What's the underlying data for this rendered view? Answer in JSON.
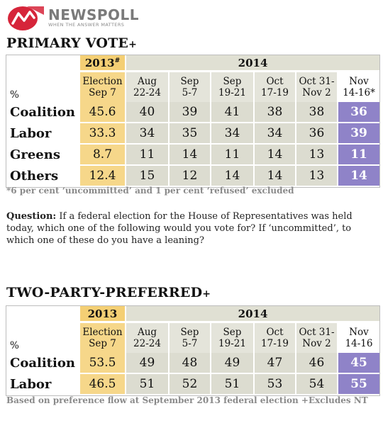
{
  "brand": {
    "name": "NEWSPOLL",
    "tagline": "WHEN THE ANSWER MATTERS",
    "logo_icon": "newspoll-logo-icon",
    "colors": {
      "logo_red": "#d6253a",
      "logo_grey": "#7a7a7a"
    }
  },
  "colors": {
    "col2013": "#f6d78a",
    "col2014": "#dcdcd0",
    "highlight_nov": "#8f83c8",
    "note_grey": "#8a8a8a"
  },
  "primary": {
    "title": "PRIMARY VOTE",
    "title_mark": "+",
    "year2013": "2013",
    "year2013_mark": "#",
    "year2014": "2014",
    "pct_label": "%",
    "columns": [
      {
        "l1": "Election",
        "l2": "Sep 7"
      },
      {
        "l1": "Aug",
        "l2": "22-24"
      },
      {
        "l1": "Sep",
        "l2": "5-7"
      },
      {
        "l1": "Sep",
        "l2": "19-21"
      },
      {
        "l1": "Oct",
        "l2": "17-19"
      },
      {
        "l1": "Oct 31-",
        "l2": "Nov 2"
      },
      {
        "l1": "Nov",
        "l2": "14-16*"
      }
    ],
    "rows": [
      {
        "label": "Coalition",
        "values": [
          "45.6",
          "40",
          "39",
          "41",
          "38",
          "38",
          "36"
        ]
      },
      {
        "label": "Labor",
        "values": [
          "33.3",
          "34",
          "35",
          "34",
          "34",
          "36",
          "39"
        ]
      },
      {
        "label": "Greens",
        "values": [
          "8.7",
          "11",
          "14",
          "11",
          "14",
          "13",
          "11"
        ]
      },
      {
        "label": "Others",
        "values": [
          "12.4",
          "15",
          "12",
          "14",
          "14",
          "13",
          "14"
        ]
      }
    ],
    "footnote": "*6 per cent ‘uncommitted’ and 1 per cent ‘refused’ excluded"
  },
  "question": {
    "label": "Question:",
    "text": " If a federal election for the House of Representatives was held today, which one of the following would you vote for? If ‘uncommitted’, to which one of these do you have a leaning?"
  },
  "tpp": {
    "title": "TWO-PARTY-PREFERRED",
    "title_mark": "+",
    "year2013": "2013",
    "year2014": "2014",
    "pct_label": "%",
    "columns": [
      {
        "l1": "Election",
        "l2": "Sep 7"
      },
      {
        "l1": "Aug",
        "l2": "22-24"
      },
      {
        "l1": "Sep",
        "l2": "5-7"
      },
      {
        "l1": "Sep",
        "l2": "19-21"
      },
      {
        "l1": "Oct",
        "l2": "17-19"
      },
      {
        "l1": "Oct 31-",
        "l2": "Nov 2"
      },
      {
        "l1": "Nov",
        "l2": "14-16"
      }
    ],
    "rows": [
      {
        "label": "Coalition",
        "values": [
          "53.5",
          "49",
          "48",
          "49",
          "47",
          "46",
          "45"
        ]
      },
      {
        "label": "Labor",
        "values": [
          "46.5",
          "51",
          "52",
          "51",
          "53",
          "54",
          "55"
        ]
      }
    ],
    "footnote": "Based on preference flow at September 2013 federal election  +Excludes NT"
  }
}
